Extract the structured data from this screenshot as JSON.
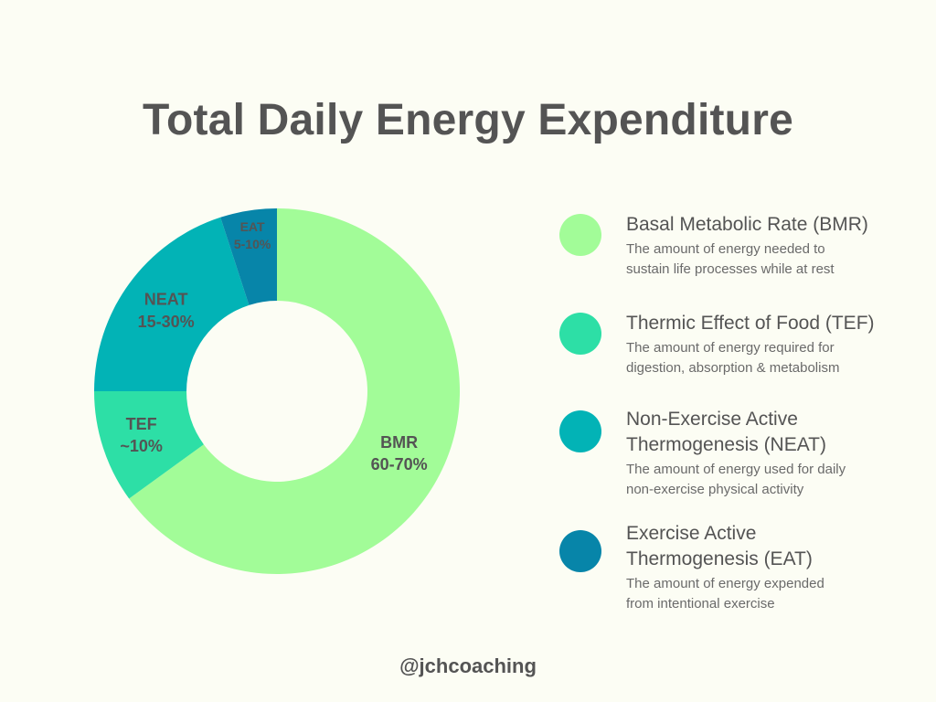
{
  "title": "Total Daily Energy Expenditure",
  "footer": "@jchcoaching",
  "chart_data": {
    "type": "pie",
    "title": "Total Daily Energy Expenditure",
    "slices": [
      {
        "name": "BMR",
        "range_label": "60-70%",
        "value": 65,
        "color": "#a2fc98"
      },
      {
        "name": "TEF",
        "range_label": "~10%",
        "value": 10,
        "color": "#2ddfa6"
      },
      {
        "name": "NEAT",
        "range_label": "15-30%",
        "value": 20,
        "color": "#02b3b6"
      },
      {
        "name": "EAT",
        "range_label": "5-10%",
        "value": 5,
        "color": "#0785a9"
      }
    ],
    "hole": "donut",
    "legend_position": "right"
  },
  "legend": {
    "items": [
      {
        "title": "Basal Metabolic Rate (BMR)",
        "description_lines": [
          "The amount of energy needed to",
          "sustain life processes while at rest"
        ],
        "color": "#a2fc98"
      },
      {
        "title": "Thermic Effect of Food (TEF)",
        "description_lines": [
          "The amount of energy required for",
          "digestion, absorption & metabolism"
        ],
        "color": "#2ddfa6"
      },
      {
        "title_lines": [
          "Non-Exercise Active",
          "Thermogenesis (NEAT)"
        ],
        "description_lines": [
          "The amount of energy used for daily",
          "non-exercise physical activity"
        ],
        "color": "#02b3b6"
      },
      {
        "title_lines": [
          "Exercise Active",
          "Thermogenesis (EAT)"
        ],
        "description_lines": [
          "The amount of energy expended",
          "from intentional exercise"
        ],
        "color": "#0785a9"
      }
    ]
  }
}
